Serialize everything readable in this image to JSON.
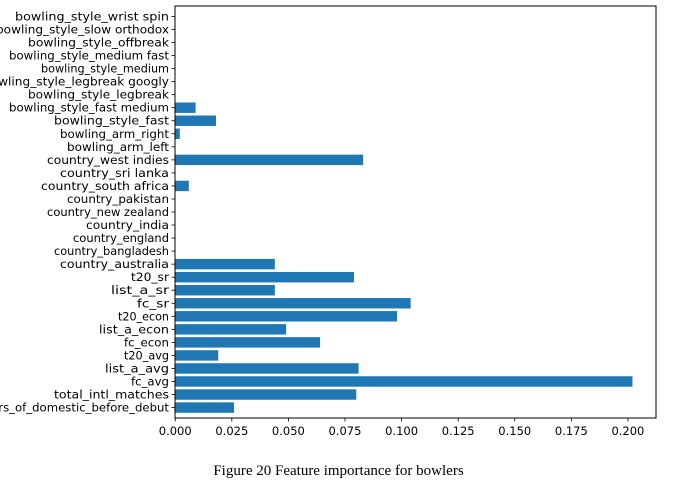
{
  "chart_data": {
    "type": "bar",
    "orientation": "horizontal",
    "categories": [
      "years_of_domestic_before_debut",
      "total_intl_matches",
      "fc_avg",
      "list_a_avg",
      "t20_avg",
      "fc_econ",
      "list_a_econ",
      "t20_econ",
      "fc_sr",
      "list_a_sr",
      "t20_sr",
      "country_australia",
      "country_bangladesh",
      "country_england",
      "country_india",
      "country_new zealand",
      "country_pakistan",
      "country_south africa",
      "country_sri lanka",
      "country_west indies",
      "bowling_arm_left",
      "bowling_arm_right",
      "bowling_style_fast",
      "bowling_style_fast medium",
      "bowling_style_legbreak",
      "bowling_style_legbreak googly",
      "bowling_style_medium",
      "bowling_style_medium fast",
      "bowling_style_offbreak",
      "bowling_style_slow orthodox",
      "bowling_style_wrist spin"
    ],
    "values": [
      0.026,
      0.08,
      0.202,
      0.081,
      0.019,
      0.064,
      0.049,
      0.098,
      0.104,
      0.044,
      0.079,
      0.044,
      0,
      0,
      0,
      0,
      0,
      0.006,
      0,
      0.083,
      0,
      0.002,
      0.018,
      0.009,
      0,
      0,
      0,
      0,
      0,
      0,
      0
    ],
    "xticks": [
      "0.000",
      "0.025",
      "0.050",
      "0.075",
      "0.100",
      "0.125",
      "0.150",
      "0.175",
      "0.200"
    ],
    "xlim": [
      -0.0001,
      0.2124
    ],
    "bar_color": "#1f77b4",
    "grid": false,
    "title": "",
    "xlabel": "",
    "ylabel": ""
  },
  "caption": "Figure 20 Feature importance for bowlers"
}
